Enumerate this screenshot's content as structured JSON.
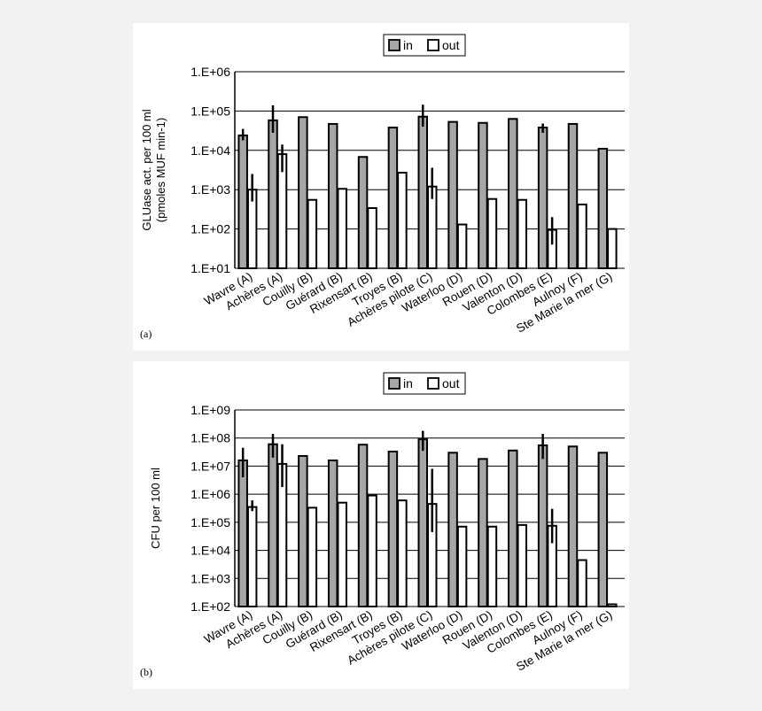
{
  "chart_data": [
    {
      "type": "bar",
      "panel_label": "(a)",
      "ylabel_lines": [
        "GLUase act. per 100 ml",
        "(pmoles MUF min-1)"
      ],
      "yscale": "log",
      "ylim": [
        10,
        1000000
      ],
      "yticks": [
        10,
        100,
        1000,
        10000,
        100000,
        1000000
      ],
      "ytick_labels": [
        "1.E+01",
        "1.E+02",
        "1.E+03",
        "1.E+04",
        "1.E+05",
        "1.E+06"
      ],
      "grid": true,
      "legend": "top-center",
      "categories": [
        "Wavre (A)",
        "Achères (A)",
        "Couilly (B)",
        "Guérard (B)",
        "Rixensart (B)",
        "Troyes (B)",
        "Achères pilote (C)",
        "Waterloo (D)",
        "Rouen (D)",
        "Valenton (D)",
        "Colombes (E)",
        "Aulnoy (F)",
        "Ste Marie la mer (G)"
      ],
      "series": [
        {
          "name": "in",
          "color": "#a6a6a6",
          "values": [
            24000,
            58000,
            70000,
            47000,
            6800,
            38000,
            72000,
            53000,
            50000,
            63000,
            38000,
            47000,
            11000
          ],
          "error": [
            [
              18000,
              35000
            ],
            [
              28000,
              140000
            ],
            null,
            null,
            null,
            null,
            [
              40000,
              145000
            ],
            null,
            null,
            null,
            [
              28000,
              48000
            ],
            null,
            null
          ]
        },
        {
          "name": "out",
          "color": "#ffffff",
          "values": [
            1000,
            8000,
            550,
            1050,
            340,
            2700,
            1200,
            130,
            580,
            550,
            95,
            420,
            100
          ],
          "error": [
            [
              500,
              2500
            ],
            [
              2800,
              14000
            ],
            null,
            null,
            null,
            null,
            [
              580,
              3600
            ],
            null,
            null,
            null,
            [
              40,
              200
            ],
            null,
            null
          ]
        }
      ]
    },
    {
      "type": "bar",
      "panel_label": "(b)",
      "ylabel_lines": [
        "CFU per 100 ml"
      ],
      "yscale": "log",
      "ylim": [
        100,
        1000000000
      ],
      "yticks": [
        100,
        1000,
        10000,
        100000,
        1000000,
        10000000,
        100000000,
        1000000000
      ],
      "ytick_labels": [
        "1.E+02",
        "1.E+03",
        "1.E+04",
        "1.E+05",
        "1.E+06",
        "1.E+07",
        "1.E+08",
        "1.E+09"
      ],
      "grid": true,
      "legend": "top-center",
      "categories": [
        "Wavre (A)",
        "Achères (A)",
        "Couilly (B)",
        "Guérard (B)",
        "Rixensart (B)",
        "Troyes (B)",
        "Achères pilote (C)",
        "Waterloo (D)",
        "Rouen (D)",
        "Valenton (D)",
        "Colombes (E)",
        "Aulnoy (F)",
        "Ste Marie la mer (G)"
      ],
      "series": [
        {
          "name": "in",
          "color": "#a6a6a6",
          "values": [
            16000000,
            60000000,
            23000000,
            16000000,
            58000000,
            33000000,
            90000000,
            30000000,
            18000000,
            36000000,
            55000000,
            50000000,
            30000000
          ],
          "error": [
            [
              4000000,
              45000000
            ],
            [
              20000000,
              140000000
            ],
            null,
            null,
            null,
            null,
            [
              35000000,
              180000000
            ],
            null,
            null,
            null,
            [
              18000000,
              140000000
            ],
            null,
            null
          ]
        },
        {
          "name": "out",
          "color": "#ffffff",
          "values": [
            350000,
            12000000,
            330000,
            500000,
            900000,
            600000,
            450000,
            70000,
            70000,
            80000,
            75000,
            4500,
            120
          ],
          "error": [
            [
              250000,
              600000
            ],
            [
              1800000,
              60000000
            ],
            null,
            null,
            null,
            null,
            [
              45000,
              8000000
            ],
            null,
            null,
            null,
            [
              18000,
              300000
            ],
            null,
            null
          ]
        }
      ]
    }
  ]
}
